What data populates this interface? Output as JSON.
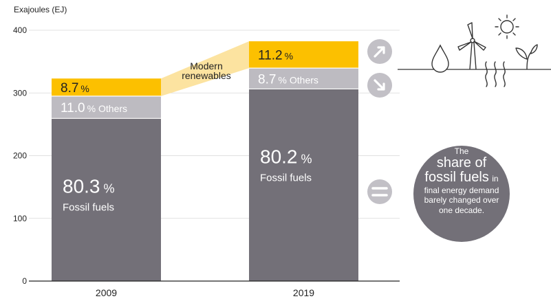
{
  "chart_data": {
    "type": "bar",
    "stacked": true,
    "ylabel": "Exajoules (EJ)",
    "ylim": [
      0,
      400
    ],
    "yticks": [
      0,
      100,
      200,
      300,
      400
    ],
    "categories": [
      "2009",
      "2019"
    ],
    "totals_ej": [
      323,
      382
    ],
    "series": [
      {
        "name": "Fossil fuels",
        "color": "#737078",
        "label_color": "#ffffff",
        "percent_values": [
          80.3,
          80.2
        ],
        "labels": [
          "80.3",
          "80.2"
        ]
      },
      {
        "name": "Others",
        "color": "#bdbbc1",
        "label_color": "#ffffff",
        "percent_values": [
          11.0,
          8.7
        ],
        "labels": [
          "11.0",
          "8.7"
        ]
      },
      {
        "name": "Modern renewables",
        "color": "#fcc000",
        "label_color": "#222222",
        "percent_values": [
          8.7,
          11.2
        ],
        "labels": [
          "8.7",
          "11.2"
        ]
      }
    ],
    "percent_sign": "%",
    "fossil_label": "Fossil fuels",
    "others_label": "Others",
    "connector_label": [
      "Modern",
      "renewables"
    ],
    "trend_icons": [
      "arrow-up-right-icon",
      "arrow-down-right-icon",
      "equals-icon"
    ]
  },
  "callout": {
    "line1": "The",
    "line2": "share of",
    "line3_big": "fossil fuels",
    "line3_small": "in",
    "line4": "final energy demand",
    "line5": "barely changed over",
    "line6": "one decade."
  },
  "colors": {
    "fossil": "#737078",
    "others": "#bdbbc1",
    "renewables": "#fcc000",
    "connector": "#fce3a0",
    "icon_circle": "#c2c0c6",
    "callout_circle": "#737078",
    "axis": "#222222"
  }
}
